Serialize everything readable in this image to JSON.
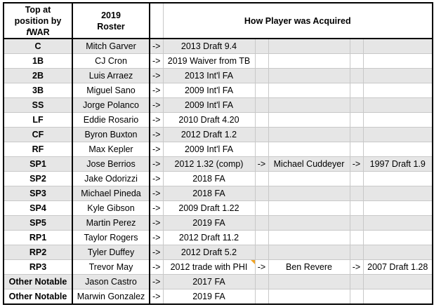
{
  "header": {
    "position": "Top at position by fWAR",
    "position_lines": [
      "Top at",
      "position by",
      "fWAR"
    ],
    "roster_lines": [
      "2019",
      "Roster"
    ],
    "acquired": "How Player was Acquired"
  },
  "rows": [
    {
      "pos": "C",
      "player": "Mitch Garver",
      "arrow1": "->",
      "acq1": "2013 Draft 9.4",
      "arrow2": "",
      "acq2": "",
      "arrow3": "",
      "acq3": ""
    },
    {
      "pos": "1B",
      "player": "CJ Cron",
      "arrow1": "->",
      "acq1": "2019 Waiver from TB",
      "arrow2": "",
      "acq2": "",
      "arrow3": "",
      "acq3": ""
    },
    {
      "pos": "2B",
      "player": "Luis Arraez",
      "arrow1": "->",
      "acq1": "2013 Int'l FA",
      "arrow2": "",
      "acq2": "",
      "arrow3": "",
      "acq3": ""
    },
    {
      "pos": "3B",
      "player": "Miguel Sano",
      "arrow1": "->",
      "acq1": "2009 Int'l FA",
      "arrow2": "",
      "acq2": "",
      "arrow3": "",
      "acq3": ""
    },
    {
      "pos": "SS",
      "player": "Jorge Polanco",
      "arrow1": "->",
      "acq1": "2009 Int'l FA",
      "arrow2": "",
      "acq2": "",
      "arrow3": "",
      "acq3": ""
    },
    {
      "pos": "LF",
      "player": "Eddie Rosario",
      "arrow1": "->",
      "acq1": "2010 Draft 4.20",
      "arrow2": "",
      "acq2": "",
      "arrow3": "",
      "acq3": ""
    },
    {
      "pos": "CF",
      "player": "Byron Buxton",
      "arrow1": "->",
      "acq1": "2012 Draft 1.2",
      "arrow2": "",
      "acq2": "",
      "arrow3": "",
      "acq3": ""
    },
    {
      "pos": "RF",
      "player": "Max Kepler",
      "arrow1": "->",
      "acq1": "2009 Int'l FA",
      "arrow2": "",
      "acq2": "",
      "arrow3": "",
      "acq3": ""
    },
    {
      "pos": "SP1",
      "player": "Jose Berrios",
      "arrow1": "->",
      "acq1": "2012 1.32 (comp)",
      "arrow2": "->",
      "acq2": "Michael Cuddeyer",
      "arrow3": "->",
      "acq3": "1997 Draft 1.9"
    },
    {
      "pos": "SP2",
      "player": "Jake Odorizzi",
      "arrow1": "->",
      "acq1": "2018 FA",
      "arrow2": "",
      "acq2": "",
      "arrow3": "",
      "acq3": ""
    },
    {
      "pos": "SP3",
      "player": "Michael Pineda",
      "arrow1": "->",
      "acq1": "2018 FA",
      "arrow2": "",
      "acq2": "",
      "arrow3": "",
      "acq3": ""
    },
    {
      "pos": "SP4",
      "player": "Kyle Gibson",
      "arrow1": "->",
      "acq1": "2009 Draft 1.22",
      "arrow2": "",
      "acq2": "",
      "arrow3": "",
      "acq3": ""
    },
    {
      "pos": "SP5",
      "player": "Martin Perez",
      "arrow1": "->",
      "acq1": "2019 FA",
      "arrow2": "",
      "acq2": "",
      "arrow3": "",
      "acq3": ""
    },
    {
      "pos": "RP1",
      "player": "Taylor Rogers",
      "arrow1": "->",
      "acq1": "2012 Draft 11.2",
      "arrow2": "",
      "acq2": "",
      "arrow3": "",
      "acq3": ""
    },
    {
      "pos": "RP2",
      "player": "Tyler Duffey",
      "arrow1": "->",
      "acq1": "2012 Draft 5.2",
      "arrow2": "",
      "acq2": "",
      "arrow3": "",
      "acq3": ""
    },
    {
      "pos": "RP3",
      "player": "Trevor May",
      "arrow1": "->",
      "acq1": "2012 trade with PHI",
      "arrow2": "->",
      "acq2": "Ben Revere",
      "arrow3": "->",
      "acq3": "2007 Draft 1.28"
    },
    {
      "pos": "Other Notable",
      "player": "Jason Castro",
      "arrow1": "->",
      "acq1": "2017 FA",
      "arrow2": "",
      "acq2": "",
      "arrow3": "",
      "acq3": ""
    },
    {
      "pos": "Other Notable",
      "player": "Marwin Gonzalez",
      "arrow1": "->",
      "acq1": "2019 FA",
      "arrow2": "",
      "acq2": "",
      "arrow3": "",
      "acq3": ""
    }
  ],
  "colors": {
    "shade": "#e6e6e6",
    "border": "#c8c8c8",
    "comment_marker": "#f2a422"
  }
}
